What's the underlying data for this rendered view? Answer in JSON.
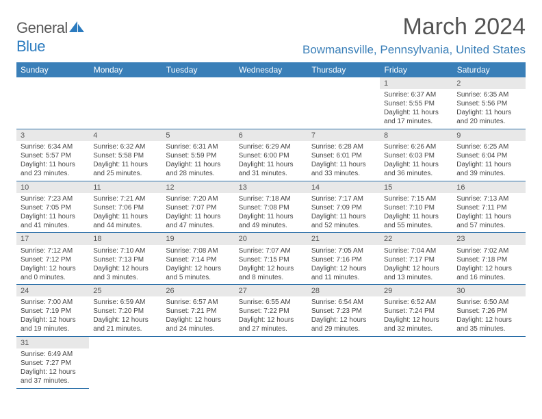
{
  "logo": {
    "text1": "General",
    "text2": "Blue"
  },
  "header": {
    "month_title": "March 2024",
    "location": "Bowmansville, Pennsylvania, United States"
  },
  "day_headers": [
    "Sunday",
    "Monday",
    "Tuesday",
    "Wednesday",
    "Thursday",
    "Friday",
    "Saturday"
  ],
  "colors": {
    "header_bg": "#3a7fb8",
    "accent": "#2b6fa8",
    "logo_blue": "#2b7bbf",
    "daynum_bg": "#e8e8e8"
  },
  "weeks": [
    [
      null,
      null,
      null,
      null,
      null,
      {
        "n": "1",
        "sr": "Sunrise: 6:37 AM",
        "ss": "Sunset: 5:55 PM",
        "d1": "Daylight: 11 hours",
        "d2": "and 17 minutes."
      },
      {
        "n": "2",
        "sr": "Sunrise: 6:35 AM",
        "ss": "Sunset: 5:56 PM",
        "d1": "Daylight: 11 hours",
        "d2": "and 20 minutes."
      }
    ],
    [
      {
        "n": "3",
        "sr": "Sunrise: 6:34 AM",
        "ss": "Sunset: 5:57 PM",
        "d1": "Daylight: 11 hours",
        "d2": "and 23 minutes."
      },
      {
        "n": "4",
        "sr": "Sunrise: 6:32 AM",
        "ss": "Sunset: 5:58 PM",
        "d1": "Daylight: 11 hours",
        "d2": "and 25 minutes."
      },
      {
        "n": "5",
        "sr": "Sunrise: 6:31 AM",
        "ss": "Sunset: 5:59 PM",
        "d1": "Daylight: 11 hours",
        "d2": "and 28 minutes."
      },
      {
        "n": "6",
        "sr": "Sunrise: 6:29 AM",
        "ss": "Sunset: 6:00 PM",
        "d1": "Daylight: 11 hours",
        "d2": "and 31 minutes."
      },
      {
        "n": "7",
        "sr": "Sunrise: 6:28 AM",
        "ss": "Sunset: 6:01 PM",
        "d1": "Daylight: 11 hours",
        "d2": "and 33 minutes."
      },
      {
        "n": "8",
        "sr": "Sunrise: 6:26 AM",
        "ss": "Sunset: 6:03 PM",
        "d1": "Daylight: 11 hours",
        "d2": "and 36 minutes."
      },
      {
        "n": "9",
        "sr": "Sunrise: 6:25 AM",
        "ss": "Sunset: 6:04 PM",
        "d1": "Daylight: 11 hours",
        "d2": "and 39 minutes."
      }
    ],
    [
      {
        "n": "10",
        "sr": "Sunrise: 7:23 AM",
        "ss": "Sunset: 7:05 PM",
        "d1": "Daylight: 11 hours",
        "d2": "and 41 minutes."
      },
      {
        "n": "11",
        "sr": "Sunrise: 7:21 AM",
        "ss": "Sunset: 7:06 PM",
        "d1": "Daylight: 11 hours",
        "d2": "and 44 minutes."
      },
      {
        "n": "12",
        "sr": "Sunrise: 7:20 AM",
        "ss": "Sunset: 7:07 PM",
        "d1": "Daylight: 11 hours",
        "d2": "and 47 minutes."
      },
      {
        "n": "13",
        "sr": "Sunrise: 7:18 AM",
        "ss": "Sunset: 7:08 PM",
        "d1": "Daylight: 11 hours",
        "d2": "and 49 minutes."
      },
      {
        "n": "14",
        "sr": "Sunrise: 7:17 AM",
        "ss": "Sunset: 7:09 PM",
        "d1": "Daylight: 11 hours",
        "d2": "and 52 minutes."
      },
      {
        "n": "15",
        "sr": "Sunrise: 7:15 AM",
        "ss": "Sunset: 7:10 PM",
        "d1": "Daylight: 11 hours",
        "d2": "and 55 minutes."
      },
      {
        "n": "16",
        "sr": "Sunrise: 7:13 AM",
        "ss": "Sunset: 7:11 PM",
        "d1": "Daylight: 11 hours",
        "d2": "and 57 minutes."
      }
    ],
    [
      {
        "n": "17",
        "sr": "Sunrise: 7:12 AM",
        "ss": "Sunset: 7:12 PM",
        "d1": "Daylight: 12 hours",
        "d2": "and 0 minutes."
      },
      {
        "n": "18",
        "sr": "Sunrise: 7:10 AM",
        "ss": "Sunset: 7:13 PM",
        "d1": "Daylight: 12 hours",
        "d2": "and 3 minutes."
      },
      {
        "n": "19",
        "sr": "Sunrise: 7:08 AM",
        "ss": "Sunset: 7:14 PM",
        "d1": "Daylight: 12 hours",
        "d2": "and 5 minutes."
      },
      {
        "n": "20",
        "sr": "Sunrise: 7:07 AM",
        "ss": "Sunset: 7:15 PM",
        "d1": "Daylight: 12 hours",
        "d2": "and 8 minutes."
      },
      {
        "n": "21",
        "sr": "Sunrise: 7:05 AM",
        "ss": "Sunset: 7:16 PM",
        "d1": "Daylight: 12 hours",
        "d2": "and 11 minutes."
      },
      {
        "n": "22",
        "sr": "Sunrise: 7:04 AM",
        "ss": "Sunset: 7:17 PM",
        "d1": "Daylight: 12 hours",
        "d2": "and 13 minutes."
      },
      {
        "n": "23",
        "sr": "Sunrise: 7:02 AM",
        "ss": "Sunset: 7:18 PM",
        "d1": "Daylight: 12 hours",
        "d2": "and 16 minutes."
      }
    ],
    [
      {
        "n": "24",
        "sr": "Sunrise: 7:00 AM",
        "ss": "Sunset: 7:19 PM",
        "d1": "Daylight: 12 hours",
        "d2": "and 19 minutes."
      },
      {
        "n": "25",
        "sr": "Sunrise: 6:59 AM",
        "ss": "Sunset: 7:20 PM",
        "d1": "Daylight: 12 hours",
        "d2": "and 21 minutes."
      },
      {
        "n": "26",
        "sr": "Sunrise: 6:57 AM",
        "ss": "Sunset: 7:21 PM",
        "d1": "Daylight: 12 hours",
        "d2": "and 24 minutes."
      },
      {
        "n": "27",
        "sr": "Sunrise: 6:55 AM",
        "ss": "Sunset: 7:22 PM",
        "d1": "Daylight: 12 hours",
        "d2": "and 27 minutes."
      },
      {
        "n": "28",
        "sr": "Sunrise: 6:54 AM",
        "ss": "Sunset: 7:23 PM",
        "d1": "Daylight: 12 hours",
        "d2": "and 29 minutes."
      },
      {
        "n": "29",
        "sr": "Sunrise: 6:52 AM",
        "ss": "Sunset: 7:24 PM",
        "d1": "Daylight: 12 hours",
        "d2": "and 32 minutes."
      },
      {
        "n": "30",
        "sr": "Sunrise: 6:50 AM",
        "ss": "Sunset: 7:26 PM",
        "d1": "Daylight: 12 hours",
        "d2": "and 35 minutes."
      }
    ],
    [
      {
        "n": "31",
        "sr": "Sunrise: 6:49 AM",
        "ss": "Sunset: 7:27 PM",
        "d1": "Daylight: 12 hours",
        "d2": "and 37 minutes."
      },
      null,
      null,
      null,
      null,
      null,
      null
    ]
  ]
}
